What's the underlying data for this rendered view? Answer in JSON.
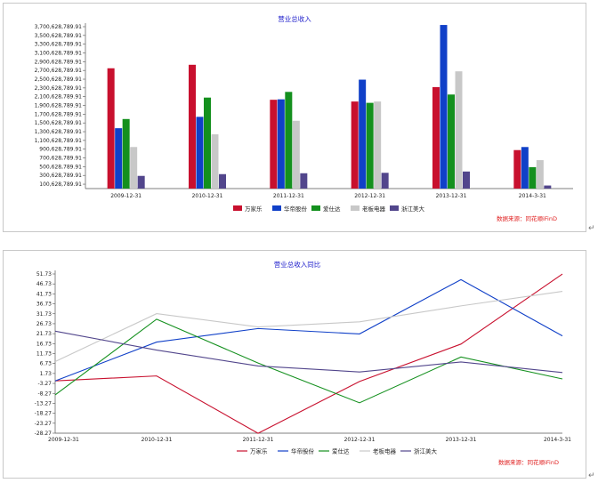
{
  "chart_data": [
    {
      "type": "bar",
      "title": "营业总收入",
      "categories": [
        "2009-12-31",
        "2010-12-31",
        "2011-12-31",
        "2012-12-31",
        "2013-12-31",
        "2014-3-31"
      ],
      "y_ticks": [
        "3,700,628,789.91",
        "3,500,628,789.91",
        "3,300,628,789.91",
        "3,100,628,789.91",
        "2,900,628,789.91",
        "2,700,628,789.91",
        "2,500,628,789.91",
        "2,300,628,789.91",
        "2,100,628,789.91",
        "1,900,628,789.91",
        "1,700,628,789.91",
        "1,500,628,789.91",
        "1,300,628,789.91",
        "1,100,628,789.91",
        "900,628,789.91",
        "700,628,789.91",
        "500,628,789.91",
        "300,628,789.91",
        "100,628,789.91"
      ],
      "ylim": [
        0,
        3700628789.91
      ],
      "series": [
        {
          "name": "万家乐",
          "color": "#c8102e",
          "values": [
            2750000000,
            2830000000,
            2030000000,
            1990000000,
            2320000000,
            880000000
          ]
        },
        {
          "name": "华帝股份",
          "color": "#1040c8",
          "values": [
            1380000000,
            1640000000,
            2040000000,
            2490000000,
            3740000000,
            950000000
          ]
        },
        {
          "name": "爱仕达",
          "color": "#14901e",
          "values": [
            1590000000,
            2080000000,
            2210000000,
            1960000000,
            2150000000,
            490000000
          ]
        },
        {
          "name": "老板电器",
          "color": "#c8c8c8",
          "values": [
            950000000,
            1240000000,
            1550000000,
            1990000000,
            2680000000,
            650000000
          ]
        },
        {
          "name": "浙江美大",
          "color": "#52468c",
          "values": [
            290000000,
            330000000,
            350000000,
            360000000,
            390000000,
            70000000
          ]
        }
      ],
      "source": "数据来源：同花顺iFinD"
    },
    {
      "type": "line",
      "title": "营业总收入同比",
      "x": [
        "2009-12-31",
        "2010-12-31",
        "2011-12-31",
        "2012-12-31",
        "2013-12-31",
        "2014-3-31"
      ],
      "y_ticks": [
        "51.73",
        "46.73",
        "41.73",
        "36.73",
        "31.73",
        "26.73",
        "21.73",
        "16.73",
        "11.73",
        "6.73",
        "1.73",
        "-3.27",
        "-8.27",
        "-13.27",
        "-18.27",
        "-23.27",
        "-28.27"
      ],
      "ylim": [
        -28.27,
        51.73
      ],
      "series": [
        {
          "name": "万家乐",
          "color": "#c8102e",
          "values": [
            -2.0,
            0.5,
            -28.3,
            -2.3,
            16.5,
            51.7
          ]
        },
        {
          "name": "华帝股份",
          "color": "#1040c8",
          "values": [
            -2.0,
            17.5,
            24.3,
            21.6,
            48.9,
            20.6
          ]
        },
        {
          "name": "爱仕达",
          "color": "#14901e",
          "values": [
            -9.0,
            29.0,
            7.0,
            -13.0,
            10.0,
            -1.0
          ]
        },
        {
          "name": "老板电器",
          "color": "#c8c8c8",
          "values": [
            7.7,
            31.8,
            25.1,
            27.7,
            35.7,
            43.0
          ]
        },
        {
          "name": "浙江美大",
          "color": "#52468c",
          "values": [
            23.0,
            13.5,
            5.5,
            2.5,
            7.5,
            2.2
          ]
        }
      ],
      "source": "数据来源：同花顺iFinD"
    }
  ]
}
